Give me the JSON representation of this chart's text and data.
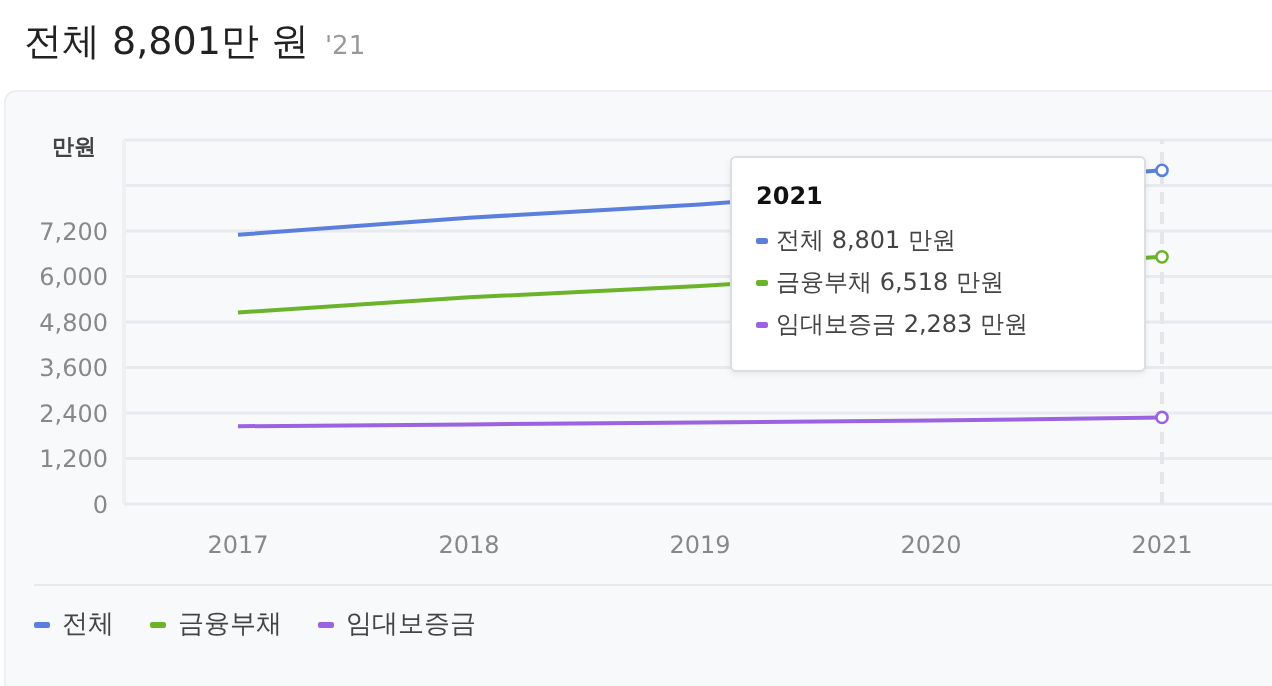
{
  "chart_data": {
    "type": "line",
    "title": "전체 8,801만 원",
    "subtitle": "'21",
    "ylabel": "만원",
    "categories": [
      "2017",
      "2018",
      "2019",
      "2020",
      "2021"
    ],
    "series": [
      {
        "name": "전체",
        "color": "#5b7fdc",
        "values": [
          7100,
          7550,
          7900,
          null,
          8801
        ]
      },
      {
        "name": "금융부채",
        "color": "#6bb42a",
        "values": [
          5050,
          5450,
          5750,
          null,
          6518
        ]
      },
      {
        "name": "임대보증금",
        "color": "#9b63e0",
        "values": [
          2050,
          2100,
          2150,
          2200,
          2283
        ]
      }
    ],
    "ylim": [
      0,
      9600
    ],
    "yticks": [
      0,
      {
        "value": 1200,
        "label": "1,200"
      },
      {
        "value": 2400,
        "label": "2,400"
      },
      {
        "value": 3600,
        "label": "3,600"
      },
      {
        "value": 4800,
        "label": "4,800"
      },
      {
        "value": 6000,
        "label": "6,000"
      },
      {
        "value": 7200,
        "label": "7,200"
      },
      {
        "value": 8400,
        "label": null
      }
    ],
    "grid": "y",
    "legend": "bottom",
    "line_style": "solid",
    "ref_lines": [
      {
        "axis": "x",
        "value": "2021",
        "color": "#e6e6ea",
        "line_style": "dashed"
      }
    ],
    "annotations": [
      "2021",
      "전체 8,801 만원",
      "금융부채 6,518 만원",
      "임대보증금 2,283 만원"
    ]
  }
}
